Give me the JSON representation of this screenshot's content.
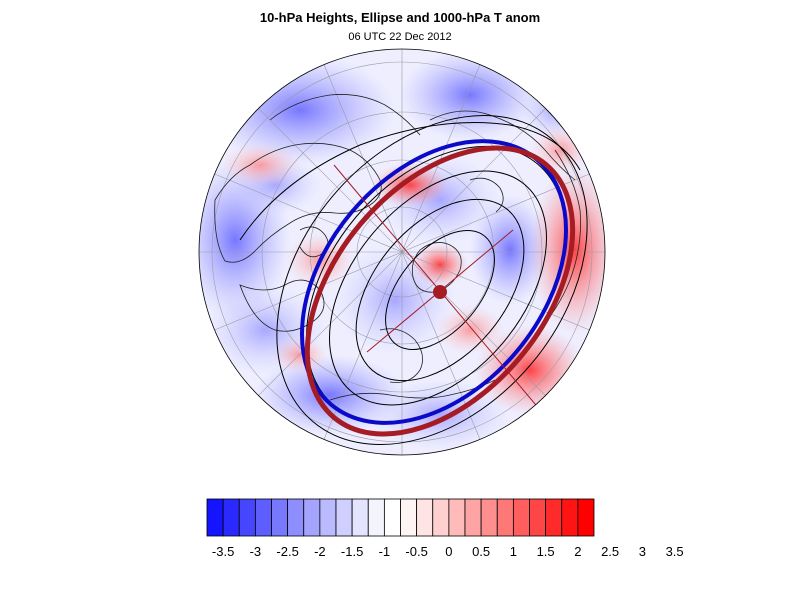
{
  "title": "10-hPa Heights, Ellipse and 1000-hPa T anom",
  "subtitle": "06 UTC 22 Dec 2012",
  "colors": {
    "height_contour": "#000000",
    "fitted_ellipse": "#a51c24",
    "vortex_edge": "#0a0ac8",
    "ellipse_center": "#a51c24"
  },
  "colorbar": {
    "levels": [
      "-3.5",
      "-3",
      "-2.5",
      "-2",
      "-1.5",
      "-1",
      "-0.5",
      "0",
      "0.5",
      "1",
      "1.5",
      "2",
      "2.5",
      "3",
      "3.5"
    ],
    "colors": [
      "#1414ff",
      "#2a2aff",
      "#4646ff",
      "#5e5eff",
      "#7878ff",
      "#8e8eff",
      "#a4a4ff",
      "#babaff",
      "#d0d0ff",
      "#e4e4ff",
      "#f4f4ff",
      "#ffffff",
      "#fff4f4",
      "#ffe4e4",
      "#ffd0d0",
      "#ffbaba",
      "#ffa4a4",
      "#ff8e8e",
      "#ff7878",
      "#ff5e5e",
      "#ff4646",
      "#ff2a2a",
      "#ff1414",
      "#ff0000"
    ]
  }
}
